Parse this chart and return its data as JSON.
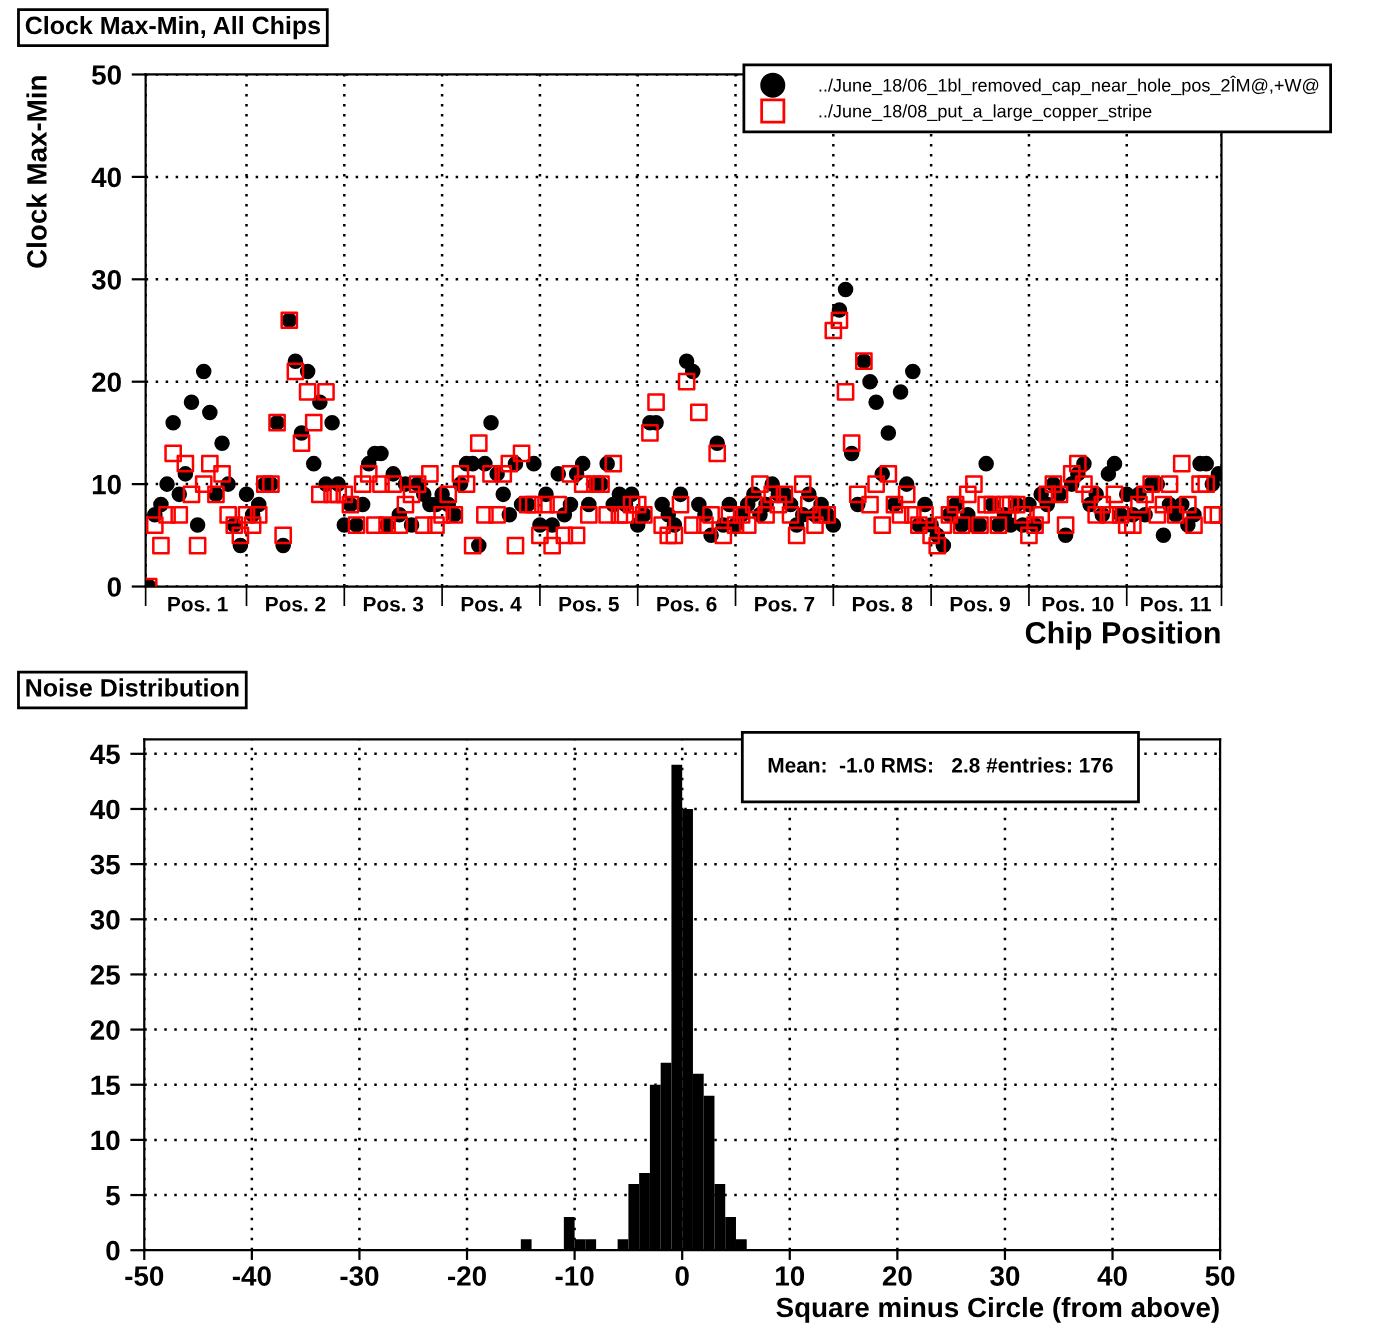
{
  "chart_data": [
    {
      "type": "scatter",
      "title": "Clock Max-Min, All Chips",
      "xlabel": "Chip Position",
      "ylabel": "Clock Max-Min",
      "categories": [
        null,
        null,
        null,
        null,
        null,
        null,
        null,
        null,
        "Pos. 1",
        null,
        null,
        null,
        null,
        null,
        null,
        null,
        null,
        null,
        null,
        null,
        null,
        null,
        null,
        null,
        "Pos. 2",
        null,
        null,
        null,
        null,
        null,
        null,
        null,
        null,
        null,
        null,
        null,
        null,
        null,
        null,
        null,
        "Pos. 3",
        null,
        null,
        null,
        null,
        null,
        null,
        null,
        null,
        null,
        null,
        null,
        null,
        null,
        null,
        null,
        "Pos. 4",
        null,
        null,
        null,
        null,
        null,
        null,
        null,
        null,
        null,
        null,
        null,
        null,
        null,
        null,
        null,
        "Pos. 5",
        null,
        null,
        null,
        null,
        null,
        null,
        null,
        null,
        null,
        null,
        null,
        null,
        null,
        null,
        null,
        "Pos. 6",
        null,
        null,
        null,
        null,
        null,
        null,
        null,
        null,
        null,
        null,
        null,
        null,
        null,
        null,
        null,
        "Pos. 7",
        null,
        null,
        null,
        null,
        null,
        null,
        null,
        null,
        null,
        null,
        null,
        null,
        null,
        null,
        null,
        "Pos. 8",
        null,
        null,
        null,
        null,
        null,
        null,
        null,
        null,
        null,
        null,
        null,
        null,
        null,
        null,
        null,
        "Pos. 9",
        null,
        null,
        null,
        null,
        null,
        null,
        null,
        null,
        null,
        null,
        null,
        null,
        null,
        null,
        null,
        "Pos. 10",
        null,
        null,
        null,
        null,
        null,
        null,
        null,
        null,
        null,
        null,
        null,
        null,
        null,
        null,
        null,
        "Pos. 11",
        null,
        null,
        null,
        null,
        null,
        null,
        null
      ],
      "ylim": [
        0,
        50
      ],
      "yticks": [
        0,
        10,
        20,
        30,
        40,
        50
      ],
      "grid": true,
      "legend": "top right",
      "series": [
        {
          "name": "../June_18/06_1bl_removed_cap_near_hole_pos_2ÎM@,+W@",
          "color": "#000000",
          "marker": "circle",
          "values": [
            0,
            7,
            8,
            10,
            16,
            9,
            11,
            18,
            6,
            21,
            17,
            9,
            14,
            10,
            6,
            4,
            9,
            7,
            8,
            10,
            10,
            16,
            4,
            26,
            22,
            15,
            21,
            12,
            18,
            10,
            16,
            10,
            6,
            8,
            6,
            8,
            12,
            13,
            13,
            6,
            11,
            7,
            10,
            6,
            10,
            9,
            8,
            8,
            9,
            8,
            7,
            10,
            12,
            12,
            4,
            12,
            16,
            11,
            9,
            7,
            12,
            8,
            8,
            12,
            6,
            9,
            6,
            11,
            7,
            8,
            11,
            12,
            8,
            10,
            10,
            12,
            8,
            9,
            8,
            9,
            6,
            7,
            16,
            16,
            8,
            7,
            6,
            9,
            22,
            21,
            8,
            7,
            5,
            14,
            6,
            8,
            6,
            7,
            8,
            9,
            7,
            8,
            10,
            9,
            9,
            8,
            6,
            7,
            9,
            7,
            8,
            7,
            6,
            27,
            29,
            13,
            8,
            22,
            20,
            18,
            11,
            15,
            8,
            19,
            10,
            21,
            6,
            8,
            6,
            5,
            4,
            7,
            8,
            6,
            7,
            6,
            6,
            12,
            8,
            6,
            7,
            6,
            8,
            6,
            8,
            6,
            9,
            8,
            10,
            9,
            5,
            10,
            11,
            12,
            8,
            9,
            7,
            11,
            12,
            7,
            9,
            7,
            9,
            7,
            10,
            10,
            5,
            8,
            7,
            8,
            6,
            7,
            12,
            12,
            10,
            11
          ]
        },
        {
          "name": "../June_18/08_put_a_large_copper_stripe",
          "color": "#ff0000",
          "marker": "square",
          "values": [
            0,
            6,
            4,
            7,
            13,
            7,
            12,
            9,
            4,
            10,
            12,
            9,
            11,
            7,
            6,
            5,
            7,
            6,
            7,
            10,
            10,
            16,
            5,
            26,
            21,
            14,
            19,
            16,
            9,
            19,
            9,
            9,
            9,
            8,
            6,
            10,
            11,
            6,
            10,
            6,
            10,
            6,
            8,
            9,
            10,
            6,
            11,
            6,
            7,
            9,
            7,
            11,
            10,
            4,
            14,
            7,
            11,
            7,
            11,
            12,
            4,
            13,
            8,
            8,
            5,
            8,
            4,
            8,
            5,
            11,
            5,
            10,
            7,
            10,
            10,
            7,
            12,
            7,
            7,
            8,
            8,
            7,
            15,
            18,
            6,
            5,
            5,
            8,
            20,
            6,
            17,
            6,
            7,
            13,
            5,
            7,
            6,
            7,
            6,
            8,
            10,
            7,
            9,
            8,
            9,
            7,
            5,
            10,
            8,
            6,
            7,
            7,
            25,
            26,
            19,
            14,
            9,
            22,
            8,
            10,
            6,
            11,
            8,
            7,
            9,
            7,
            6,
            7,
            5,
            4,
            6,
            7,
            8,
            6,
            9,
            10,
            6,
            8,
            8,
            6,
            8,
            8,
            8,
            7,
            5,
            6,
            7,
            9,
            10,
            9,
            6,
            11,
            12,
            10,
            9,
            7,
            8,
            7,
            9,
            7,
            6,
            6,
            8,
            9,
            10,
            7,
            8,
            10,
            7,
            12,
            8,
            6,
            10,
            10,
            7,
            7
          ]
        }
      ]
    },
    {
      "type": "histogram",
      "title": "Noise Distribution",
      "xlabel": "Square minus Circle (from above)",
      "bins": [
        -16,
        -15,
        -14,
        -13,
        -12,
        -11,
        -10,
        -9,
        -8,
        -7,
        -6,
        -5,
        -4,
        -3,
        -2,
        -1,
        0,
        1,
        2,
        3,
        4,
        5,
        6,
        7
      ],
      "values": [
        0,
        1,
        0,
        0,
        0,
        3,
        1,
        1,
        0,
        0,
        1,
        6,
        7,
        15,
        17,
        44,
        40,
        16,
        14,
        6,
        3,
        1,
        0
      ],
      "color": "#000000",
      "xlim": [
        -50,
        50
      ],
      "xticks": [
        -50,
        -40,
        -30,
        -20,
        -10,
        0,
        10,
        20,
        30,
        40,
        50
      ],
      "ylim": [
        0,
        46.3
      ],
      "yticks": [
        0,
        5,
        10,
        15,
        20,
        25,
        30,
        35,
        40,
        45
      ],
      "grid": true,
      "annotations": [
        "Mean:  -1.0 RMS:   2.8 #entries: 176"
      ]
    }
  ]
}
